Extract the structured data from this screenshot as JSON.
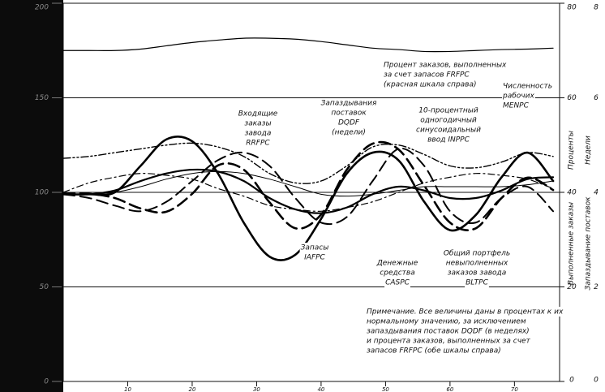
{
  "chart_data": {
    "type": "line",
    "x": [
      0,
      4,
      8,
      12,
      16,
      20,
      24,
      28,
      32,
      36,
      40,
      44,
      48,
      52,
      56,
      60,
      64,
      68,
      72,
      76
    ],
    "xlim": [
      0,
      77
    ],
    "xticks": [
      10,
      20,
      30,
      40,
      50,
      60,
      70
    ],
    "ylim": [
      0,
      200
    ],
    "yticks": [
      0,
      50,
      100,
      150,
      200
    ],
    "y2lim": [
      0,
      80
    ],
    "y2ticks": [
      0,
      20,
      40,
      60,
      80
    ],
    "y3lim": [
      0,
      8
    ],
    "y3ticks": [
      0,
      2,
      4,
      6,
      8
    ],
    "y2label": "Проценты",
    "y3label": "Недели",
    "y2label_lower": "Выполненные заказы",
    "y3label_lower": "Запаздывание поставок",
    "grid": true,
    "series": [
      {
        "color": "#000",
        "style": "solid",
        "width": 2.6,
        "values": [
          99,
          99,
          100,
          114,
          128,
          127,
          110,
          84,
          66,
          67,
          86,
          110,
          121,
          117,
          95,
          80,
          88,
          108,
          121,
          106
        ]
      },
      {
        "color": "#000",
        "style": "solid",
        "width": 2.2,
        "values": [
          99,
          99,
          101,
          106,
          110,
          112,
          111,
          106,
          97,
          91,
          89,
          92,
          99,
          103,
          101,
          97,
          97,
          101,
          107,
          108
        ]
      },
      {
        "color": "#000",
        "style": "longdash",
        "width": 2,
        "values": [
          99,
          97,
          93,
          90,
          95,
          106,
          117,
          121,
          114,
          97,
          84,
          87,
          106,
          123,
          114,
          90,
          84,
          97,
          103,
          90
        ]
      },
      {
        "color": "#000",
        "style": "longdash",
        "width": 2.6,
        "axis": "y3",
        "values": [
          3.97,
          3.97,
          3.88,
          3.66,
          3.59,
          3.97,
          4.57,
          4.48,
          3.79,
          3.24,
          3.53,
          4.48,
          5.03,
          4.91,
          4.14,
          3.36,
          3.24,
          3.88,
          4.31,
          4.05
        ]
      },
      {
        "color": "#000",
        "style": "dashdot",
        "width": 1.2,
        "values": [
          100,
          105,
          108,
          110,
          109,
          107,
          102,
          98,
          93,
          91,
          90,
          92,
          95,
          100,
          105,
          108,
          110,
          109,
          107,
          102
        ]
      },
      {
        "color": "#000",
        "style": "dashdotdot",
        "width": 1.4,
        "values": [
          118,
          119,
          121,
          123,
          125,
          126,
          124,
          119,
          110,
          105,
          106,
          114,
          124,
          125,
          120,
          114,
          113,
          116,
          121,
          119
        ]
      },
      {
        "color": "#000",
        "style": "solid",
        "width": 1,
        "values": [
          99,
          99,
          100,
          103,
          107,
          110,
          111,
          110,
          107,
          103,
          99,
          98,
          99,
          101,
          103,
          103,
          103,
          103,
          104,
          106
        ]
      },
      {
        "color": "#000",
        "style": "solid",
        "width": 1.2,
        "axis": "y2",
        "values": [
          70,
          70,
          70,
          70.3,
          71,
          71.7,
          72.2,
          72.6,
          72.6,
          72.4,
          71.9,
          71.2,
          70.5,
          70.2,
          69.8,
          69.8,
          70,
          70.2,
          70.3,
          70.5
        ]
      }
    ],
    "annotations": [
      {
        "lines": [
          "Процент заказов, выполненных",
          "за счет запасов FRFPC",
          "(красная шкала справа)"
        ]
      },
      {
        "lines": [
          "Численность",
          "рабочих",
          "MENPC"
        ]
      },
      {
        "lines": [
          "Входящие",
          "заказы",
          "завода",
          "RRFPC"
        ]
      },
      {
        "lines": [
          "Запаздывания",
          "поставок",
          "DQDF",
          "(недели)"
        ]
      },
      {
        "lines": [
          "10-процентный",
          "одногодичный",
          "синусоидальный",
          "ввод INPPC"
        ]
      },
      {
        "lines": [
          "Запасы",
          "IAFPC"
        ]
      },
      {
        "lines": [
          "Денежные",
          "средства",
          "CASPC"
        ]
      },
      {
        "lines": [
          "Общий портфель",
          "невыполненных",
          "заказов завода",
          "BLTPC"
        ]
      },
      {
        "lines": [
          "Примечание. Все величины даны в процентах к их",
          "нормальному значению, за исключением",
          "запаздывания поставок DQDF (в неделях)",
          "и процента заказов, выполненных за счет",
          "запасов FRFPC (обе шкалы справа)"
        ]
      }
    ]
  }
}
